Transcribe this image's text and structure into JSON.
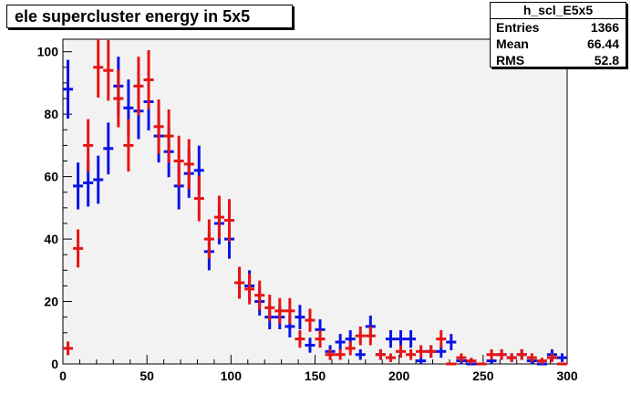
{
  "title": "ele supercluster energy in 5x5",
  "stats": {
    "name": "h_scl_E5x5",
    "rows": [
      {
        "label": "Entries",
        "value": "1366"
      },
      {
        "label": "Mean",
        "value": "66.44"
      },
      {
        "label": "RMS",
        "value": "52.8"
      }
    ]
  },
  "colors": {
    "frame_bg": "#f2f2f2",
    "blue": "#0a14e6",
    "red": "#e61414"
  },
  "chart_data": {
    "type": "scatter",
    "xlim": [
      0,
      300
    ],
    "ylim": [
      0,
      104
    ],
    "x_ticks": [
      0,
      50,
      100,
      150,
      200,
      250,
      300
    ],
    "y_ticks": [
      0,
      20,
      40,
      60,
      80,
      100
    ],
    "series": [
      {
        "color": "blue",
        "x": [
          3,
          9,
          15,
          21,
          27,
          33,
          39,
          45,
          51,
          57,
          63,
          69,
          75,
          81,
          87,
          93,
          99,
          105,
          111,
          117,
          123,
          129,
          135,
          141,
          147,
          153,
          159,
          165,
          171,
          177,
          183,
          189,
          195,
          201,
          207,
          213,
          219,
          225,
          231,
          237,
          243,
          249,
          255,
          261,
          267,
          273,
          279,
          285,
          291,
          297
        ],
        "y": [
          88,
          57,
          58,
          59,
          69,
          89,
          82,
          81,
          84,
          73,
          68,
          57,
          61,
          62,
          36,
          45,
          40,
          26,
          25,
          20,
          15,
          15,
          12,
          15,
          6,
          11,
          4,
          7,
          8,
          3,
          12,
          3,
          8,
          8,
          8,
          1,
          4,
          4,
          7,
          1,
          0,
          0,
          1,
          3,
          2,
          3,
          1,
          0,
          3,
          2
        ],
        "err": [
          9.4,
          7.5,
          7.6,
          7.7,
          8.3,
          9.4,
          9.1,
          9.0,
          9.2,
          8.5,
          8.2,
          7.5,
          7.8,
          7.9,
          6.0,
          6.7,
          6.3,
          5.1,
          5.0,
          4.5,
          3.9,
          3.9,
          3.5,
          3.9,
          2.4,
          3.3,
          2.0,
          2.6,
          2.8,
          1.7,
          3.5,
          1.7,
          2.8,
          2.8,
          2.8,
          1.0,
          2.0,
          2.0,
          2.6,
          1.0,
          0,
          0,
          1.0,
          1.7,
          1.4,
          1.7,
          1.0,
          0,
          1.7,
          1.4
        ]
      },
      {
        "color": "red",
        "x": [
          3,
          9,
          15,
          21,
          27,
          33,
          39,
          45,
          51,
          57,
          63,
          69,
          75,
          81,
          87,
          93,
          99,
          105,
          111,
          117,
          123,
          129,
          135,
          141,
          147,
          153,
          159,
          165,
          171,
          177,
          183,
          189,
          195,
          201,
          207,
          213,
          219,
          225,
          231,
          237,
          243,
          249,
          255,
          261,
          267,
          273,
          279,
          285,
          291,
          297
        ],
        "y": [
          5,
          37,
          70,
          95,
          94,
          85,
          70,
          89,
          91,
          76,
          73,
          65,
          64,
          53,
          40,
          47,
          46,
          26,
          24,
          22,
          18,
          17,
          17,
          8,
          14,
          8,
          3,
          3,
          5,
          9,
          9,
          3,
          2,
          4,
          3,
          4,
          4,
          8,
          0,
          2,
          1,
          0,
          3,
          3,
          2,
          3,
          2,
          1,
          2,
          0
        ],
        "err": [
          2.2,
          6.1,
          8.4,
          9.7,
          9.7,
          9.2,
          8.4,
          9.4,
          9.5,
          8.7,
          8.5,
          8.1,
          8.0,
          7.3,
          6.3,
          6.9,
          6.8,
          5.1,
          4.9,
          4.7,
          4.2,
          4.1,
          4.1,
          2.8,
          3.7,
          2.8,
          1.7,
          1.7,
          2.2,
          3.0,
          3.0,
          1.7,
          1.4,
          2.0,
          1.7,
          2.0,
          2.0,
          2.8,
          0,
          1.4,
          1.0,
          0,
          1.7,
          1.7,
          1.4,
          1.7,
          1.4,
          1.0,
          1.4,
          0
        ]
      }
    ]
  }
}
